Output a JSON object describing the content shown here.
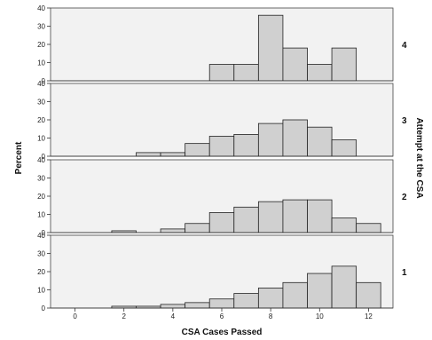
{
  "chart_data": {
    "type": "bar",
    "title": "",
    "xlabel": "CSA Cases Passed",
    "ylabel": "Percent",
    "facet_title": "Attempt at the CSA",
    "x_ticks": [
      0,
      2,
      4,
      6,
      8,
      10,
      12
    ],
    "xlim": [
      -1,
      13
    ],
    "ylim": [
      0,
      40
    ],
    "y_ticks": [
      0,
      10,
      20,
      30,
      40
    ],
    "bin_centers": [
      1,
      2,
      3,
      4,
      5,
      6,
      7,
      8,
      9,
      10,
      11,
      12
    ],
    "panels": [
      {
        "label": "4",
        "values": [
          0,
          0,
          0,
          0,
          0,
          9,
          9,
          36,
          18,
          9,
          18,
          0
        ]
      },
      {
        "label": "3",
        "values": [
          0,
          0,
          2,
          2,
          7,
          11,
          12,
          18,
          20,
          16,
          9,
          0
        ]
      },
      {
        "label": "2",
        "values": [
          0,
          1,
          0,
          2,
          5,
          11,
          14,
          17,
          18,
          18,
          8,
          5
        ]
      },
      {
        "label": "1",
        "values": [
          0,
          1,
          1,
          2,
          3,
          5,
          8,
          11,
          14,
          19,
          23,
          14
        ]
      }
    ]
  }
}
